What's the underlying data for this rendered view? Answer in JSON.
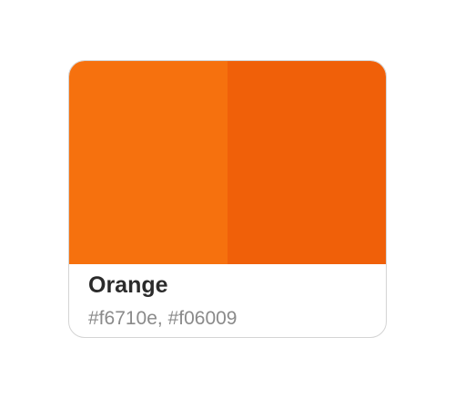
{
  "swatch": {
    "name": "Orange",
    "codes": "#f6710e, #f06009",
    "colors": [
      {
        "hex": "#f6710e"
      },
      {
        "hex": "#f06009"
      }
    ]
  }
}
